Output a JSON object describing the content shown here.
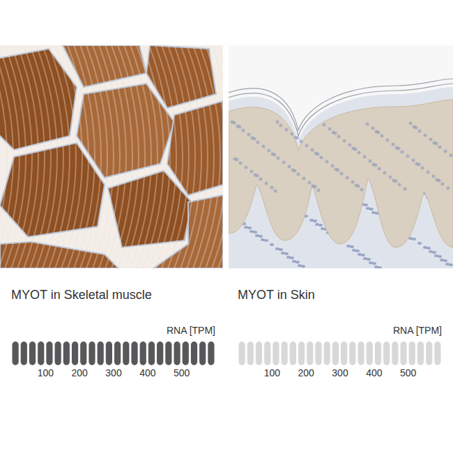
{
  "chart_data": [
    {
      "type": "bar",
      "orientation": "horizontal",
      "title": "MYOT in Skeletal muscle",
      "x_label": "RNA [TPM]",
      "values": [
        600
      ],
      "color": "#58585a",
      "xlim": [
        0,
        600
      ],
      "xticks": [
        100,
        200,
        300,
        400,
        500
      ]
    },
    {
      "type": "bar",
      "orientation": "horizontal",
      "title": "MYOT in Skin",
      "x_label": "RNA [TPM]",
      "values": [
        0
      ],
      "xlim": [
        0,
        600
      ],
      "xticks": [
        100,
        200,
        300,
        400,
        500
      ]
    }
  ]
}
